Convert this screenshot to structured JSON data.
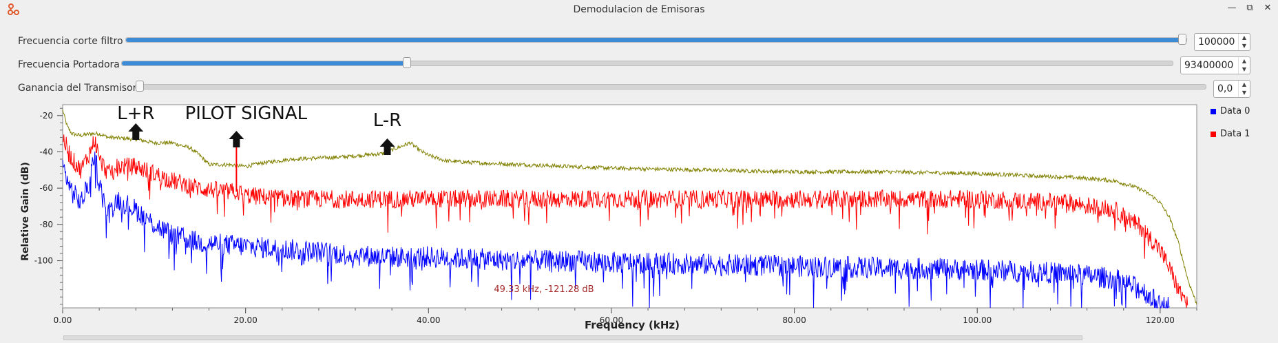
{
  "window": {
    "title": "Demodulacion de Emisoras",
    "controls": [
      "—",
      "⧉",
      "✕"
    ]
  },
  "controls": [
    {
      "label": "Frecuencia corte filtro",
      "value": "100000",
      "fraction": 1.0
    },
    {
      "label": "Frecuencia Portadora",
      "value": "93400000",
      "fraction": 0.27
    },
    {
      "label": "Ganancia del Transmisor",
      "value": "0,0",
      "fraction": 0.0
    }
  ],
  "annotations": [
    {
      "text": "L+R",
      "x_khz": 8.0
    },
    {
      "text": "PILOT SIGNAL",
      "x_khz": 19.0
    },
    {
      "text": "L-R",
      "x_khz": 35.5
    }
  ],
  "cursor_readout": "49.33 kHz, -121.28 dB",
  "colors": {
    "data0": "#0000ff",
    "data1": "#ff0000",
    "data2": "#808000",
    "slider_fill": "#3b8bd6"
  },
  "chart_data": {
    "type": "line",
    "xlabel": "Frequency (kHz)",
    "ylabel": "Relative Gain (dB)",
    "xlim": [
      0,
      124
    ],
    "ylim": [
      -126,
      -14
    ],
    "x_ticks": [
      0,
      20,
      40,
      60,
      80,
      100,
      120
    ],
    "x_tick_labels": [
      "0.00",
      "20.00",
      "40.00",
      "60.00",
      "80.00",
      "100.00",
      "120.00"
    ],
    "y_ticks": [
      -20,
      -40,
      -60,
      -80,
      -100
    ],
    "y_tick_labels": [
      "-20",
      "-40",
      "-60",
      "-80",
      "-100"
    ],
    "legend_position": "right",
    "series": [
      {
        "name": "Data 0",
        "color": "#0000ff",
        "x": [
          0,
          1,
          2,
          3,
          3.5,
          4,
          5,
          6,
          8,
          10,
          12,
          15,
          20,
          25,
          30,
          35,
          40,
          45,
          50,
          55,
          60,
          70,
          80,
          90,
          100,
          110,
          115,
          118,
          119,
          120,
          121
        ],
        "y": [
          -48,
          -62,
          -68,
          -56,
          -40,
          -58,
          -74,
          -66,
          -72,
          -80,
          -86,
          -90,
          -92,
          -94,
          -96,
          -98,
          -98,
          -99,
          -100,
          -100,
          -101,
          -102,
          -103,
          -104,
          -105,
          -107,
          -110,
          -116,
          -120,
          -125,
          -125
        ]
      },
      {
        "name": "Data 1",
        "color": "#ff0000",
        "x": [
          0,
          1,
          2,
          3,
          3.5,
          4,
          5,
          6,
          8,
          10,
          12,
          15,
          18,
          19,
          20,
          25,
          30,
          35,
          40,
          45,
          50,
          60,
          70,
          80,
          90,
          100,
          110,
          115,
          118,
          120,
          121,
          122,
          123
        ],
        "y": [
          -32,
          -44,
          -50,
          -40,
          -33,
          -44,
          -52,
          -48,
          -48,
          -52,
          -56,
          -60,
          -62,
          -62,
          -64,
          -66,
          -66,
          -66,
          -66,
          -66,
          -66,
          -66,
          -66,
          -66,
          -66,
          -66,
          -68,
          -72,
          -82,
          -94,
          -104,
          -116,
          -124
        ]
      },
      {
        "name": "",
        "color": "#808000",
        "x": [
          0,
          0.5,
          1,
          2,
          3,
          4,
          5,
          8,
          10,
          12,
          14,
          15,
          16,
          18,
          20,
          22,
          25,
          30,
          35,
          38,
          39,
          40,
          42,
          45,
          50,
          55,
          60,
          70,
          80,
          90,
          100,
          105,
          110,
          113,
          115,
          117,
          118,
          119,
          120,
          121,
          122,
          123,
          124
        ],
        "y": [
          -17,
          -26,
          -30,
          -31,
          -30,
          -30,
          -32,
          -33,
          -35,
          -35,
          -38,
          -42,
          -47,
          -47,
          -48,
          -46,
          -44,
          -43,
          -41,
          -35,
          -39,
          -42,
          -45,
          -46,
          -47,
          -48,
          -49,
          -50,
          -51,
          -51,
          -52,
          -53,
          -54,
          -55,
          -56,
          -59,
          -61,
          -64,
          -68,
          -76,
          -90,
          -110,
          -124
        ]
      }
    ]
  }
}
